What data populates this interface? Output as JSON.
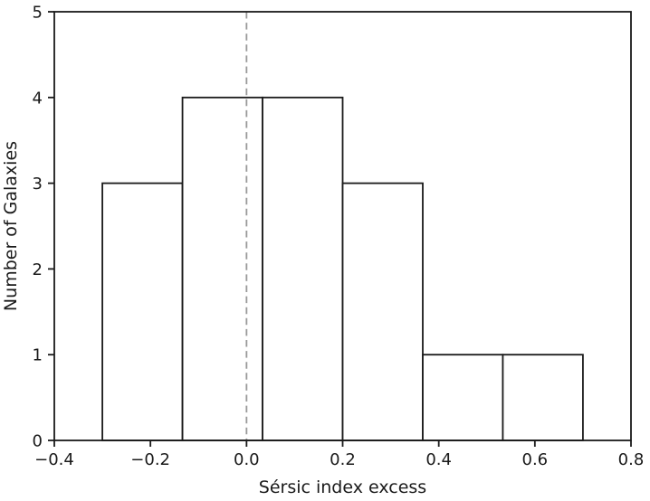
{
  "figure": {
    "background_color": "#ffffff"
  },
  "chart_data": {
    "type": "bar",
    "subtype": "histogram",
    "title": "",
    "xlabel": "Sérsic index excess",
    "ylabel": "Number of Galaxies",
    "bin_edges": [
      -0.3,
      -0.1333,
      0.0333,
      0.2,
      0.3667,
      0.5333,
      0.7
    ],
    "counts": [
      3,
      4,
      4,
      3,
      1,
      1
    ],
    "total_galaxies": 16,
    "xlim": [
      -0.4,
      0.8
    ],
    "ylim": [
      0,
      5
    ],
    "xticks": [
      -0.4,
      -0.2,
      0.0,
      0.2,
      0.4,
      0.6,
      0.8
    ],
    "xtick_labels": [
      "−0.4",
      "−0.2",
      "0.0",
      "0.2",
      "0.4",
      "0.6",
      "0.8"
    ],
    "yticks": [
      0,
      1,
      2,
      3,
      4,
      5
    ],
    "ytick_labels": [
      "0",
      "1",
      "2",
      "3",
      "4",
      "5"
    ],
    "reference_line": {
      "x": 0.0,
      "style": "dashed",
      "color": "#999999"
    },
    "colors": {
      "bar_fill": "#ffffff",
      "bar_edge": "#1a1a1a",
      "axis": "#1a1a1a",
      "text": "#1a1a1a"
    },
    "grid": false,
    "legend_position": "none"
  }
}
